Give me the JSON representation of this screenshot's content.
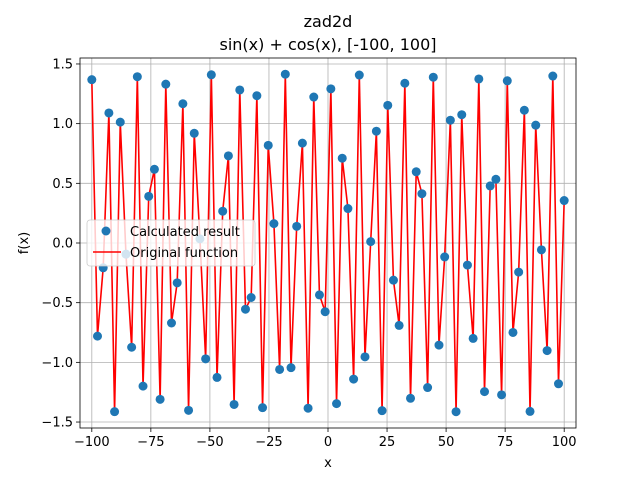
{
  "chart_data": {
    "type": "line",
    "title_lines": [
      "zad2d",
      "sin(x) + cos(x), [-100, 100]"
    ],
    "xlabel": "x",
    "ylabel": "f(x)",
    "xlim": [
      -105,
      105
    ],
    "ylim": [
      -1.55,
      1.55
    ],
    "xticks": [
      -100,
      -75,
      -50,
      -25,
      0,
      25,
      50,
      75,
      100
    ],
    "xtick_labels": [
      "−100",
      "−75",
      "−50",
      "−25",
      "0",
      "25",
      "50",
      "75",
      "100"
    ],
    "yticks": [
      -1.5,
      -1.0,
      -0.5,
      0.0,
      0.5,
      1.0,
      1.5
    ],
    "ytick_labels": [
      "−1.5",
      "−1.0",
      "−0.5",
      "0.0",
      "0.5",
      "1.0",
      "1.5"
    ],
    "grid": true,
    "legend": {
      "location": "center-left",
      "entries": [
        "Calculated result",
        "Original function"
      ]
    },
    "colors": {
      "points": "#1f77b4",
      "line": "#ff0000"
    },
    "x_range": [
      -100,
      100
    ],
    "n_points": 84,
    "series": [
      {
        "name": "Calculated result",
        "style": "scatter"
      },
      {
        "name": "Original function",
        "style": "line"
      }
    ]
  }
}
